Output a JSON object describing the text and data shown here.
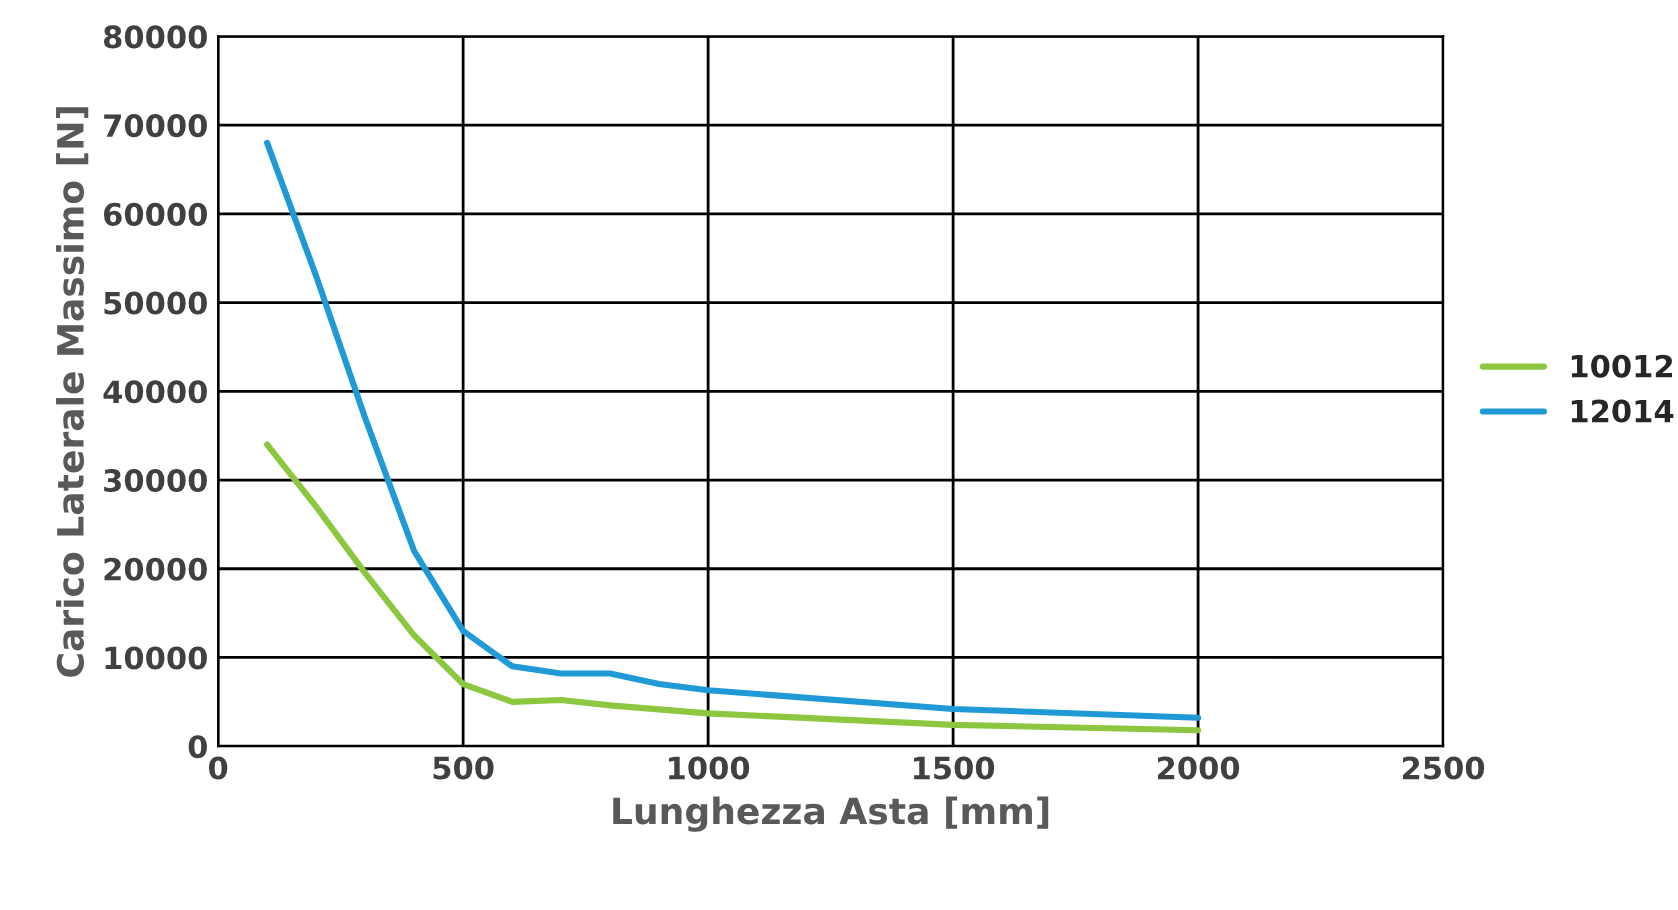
{
  "chart_data": {
    "type": "line",
    "xlabel": "Lunghezza Asta [mm]",
    "ylabel": "Carico Laterale Massimo [N]",
    "xlim": [
      0,
      2500
    ],
    "xticks": [
      0,
      500,
      1000,
      1500,
      2000,
      2500
    ],
    "ylim": [
      0,
      80000
    ],
    "yticks": [
      0,
      10000,
      20000,
      30000,
      40000,
      50000,
      60000,
      70000,
      80000
    ],
    "grid": true,
    "legend": "right",
    "marker": "none",
    "line_style": "solid",
    "series": [
      {
        "name": "10012",
        "color": "#8dc63f",
        "x": [
          100,
          200,
          300,
          400,
          500,
          600,
          700,
          800,
          1000,
          1500,
          2000
        ],
        "values": [
          34000,
          27000,
          19500,
          12500,
          7000,
          5000,
          5200,
          4600,
          3700,
          2400,
          1800
        ]
      },
      {
        "name": "12014",
        "color": "#1f9ad6",
        "x": [
          100,
          200,
          300,
          400,
          500,
          600,
          700,
          800,
          900,
          1000,
          1500,
          2000
        ],
        "values": [
          68000,
          53000,
          37000,
          22000,
          13000,
          9000,
          8200,
          8200,
          7000,
          6300,
          4200,
          3200
        ]
      }
    ]
  }
}
